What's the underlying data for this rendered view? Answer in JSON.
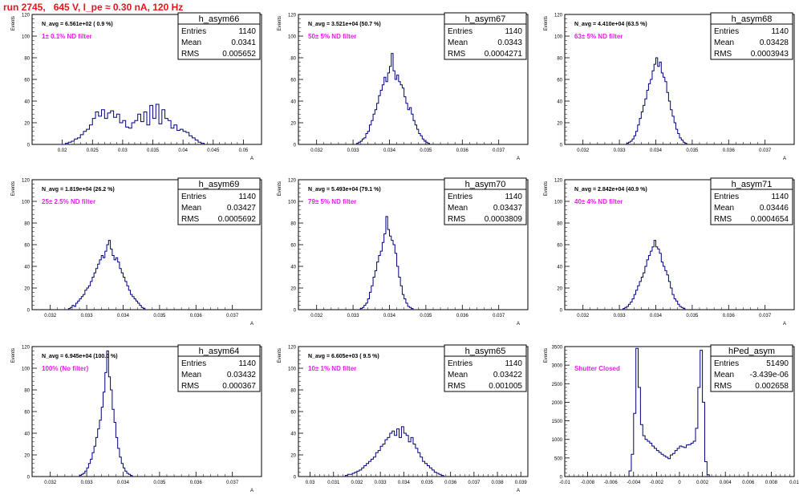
{
  "page_title": "run 2745,   645 V, I_pe ≈ 0.30 nA, 120 Hz",
  "chart_data": [
    {
      "type": "histogram",
      "hist_name": "h_asym66",
      "stats": {
        "entries": "1140",
        "mean": "0.0341",
        "rms": "0.005652"
      },
      "navg": "N_avg = 6.561e+02 ( 0.9 %)",
      "filter_label": "1± 0.1% ND filter",
      "ylabel": "Events",
      "xlabel": "A",
      "xlim": [
        0.015,
        0.053
      ],
      "ylim": [
        0,
        120
      ],
      "xticks": [
        0.02,
        0.025,
        0.03,
        0.035,
        0.04,
        0.045,
        0.05
      ],
      "xtick_labels": [
        "0.02",
        "0.025",
        "0.03",
        "0.035",
        "0.04",
        "0.045",
        "0.05"
      ],
      "yticks": [
        0,
        20,
        40,
        60,
        80,
        100,
        120
      ],
      "bin_start": 0.0195,
      "bin_width": 0.0005,
      "counts": [
        0,
        0,
        1,
        2,
        3,
        5,
        6,
        9,
        12,
        14,
        18,
        24,
        30,
        26,
        32,
        24,
        29,
        31,
        25,
        28,
        20,
        22,
        16,
        15,
        20,
        22,
        28,
        21,
        30,
        18,
        36,
        24,
        37,
        19,
        32,
        24,
        22,
        15,
        18,
        13,
        14,
        12,
        11,
        8,
        6,
        4,
        2,
        1
      ]
    },
    {
      "type": "histogram",
      "hist_name": "h_asym67",
      "stats": {
        "entries": "1140",
        "mean": "0.0343",
        "rms": "0.0004271"
      },
      "navg": "N_avg = 3.521e+04 (50.7 %)",
      "filter_label": "50± 5% ND filter",
      "ylabel": "Events",
      "xlabel": "A",
      "xlim": [
        0.0315,
        0.0378
      ],
      "ylim": [
        0,
        120
      ],
      "xticks": [
        0.032,
        0.033,
        0.034,
        0.035,
        0.036,
        0.037
      ],
      "xtick_labels": [
        "0.032",
        "0.033",
        "0.034",
        "0.035",
        "0.036",
        "0.037"
      ],
      "yticks": [
        0,
        20,
        40,
        60,
        80,
        100,
        120
      ],
      "bin_start": 0.0331,
      "bin_width": 5e-05,
      "counts": [
        1,
        2,
        3,
        5,
        6,
        10,
        12,
        18,
        22,
        28,
        32,
        38,
        45,
        50,
        55,
        62,
        58,
        66,
        72,
        84,
        68,
        60,
        64,
        58,
        55,
        52,
        44,
        38,
        32,
        34,
        28,
        22,
        18,
        14,
        10,
        8,
        5,
        3,
        2,
        1
      ]
    },
    {
      "type": "histogram",
      "hist_name": "h_asym68",
      "stats": {
        "entries": "1140",
        "mean": "0.03428",
        "rms": "0.0003943"
      },
      "navg": "N_avg = 4.410e+04 (63.5 %)",
      "filter_label": "63± 5% ND filter",
      "ylabel": "Events",
      "xlabel": "A",
      "xlim": [
        0.0315,
        0.0378
      ],
      "ylim": [
        0,
        120
      ],
      "xticks": [
        0.032,
        0.033,
        0.034,
        0.035,
        0.036,
        0.037
      ],
      "xtick_labels": [
        "0.032",
        "0.033",
        "0.034",
        "0.035",
        "0.036",
        "0.037"
      ],
      "yticks": [
        0,
        20,
        40,
        60,
        80,
        100,
        120
      ],
      "bin_start": 0.0332,
      "bin_width": 5e-05,
      "counts": [
        1,
        2,
        3,
        5,
        8,
        12,
        18,
        24,
        30,
        36,
        42,
        50,
        56,
        60,
        68,
        74,
        80,
        72,
        76,
        66,
        62,
        58,
        48,
        40,
        32,
        26,
        20,
        14,
        10,
        6,
        4,
        2,
        1
      ]
    },
    {
      "type": "histogram",
      "hist_name": "h_asym69",
      "stats": {
        "entries": "1140",
        "mean": "0.03427",
        "rms": "0.0005692"
      },
      "navg": "N_avg = 1.819e+04 (26.2 %)",
      "filter_label": "25± 2.5% ND filter",
      "ylabel": "Events",
      "xlabel": "A",
      "xlim": [
        0.0315,
        0.0378
      ],
      "ylim": [
        0,
        120
      ],
      "xticks": [
        0.032,
        0.033,
        0.034,
        0.035,
        0.036,
        0.037
      ],
      "xtick_labels": [
        "0.032",
        "0.033",
        "0.034",
        "0.035",
        "0.036",
        "0.037"
      ],
      "yticks": [
        0,
        20,
        40,
        60,
        80,
        100,
        120
      ],
      "bin_start": 0.0325,
      "bin_width": 5e-05,
      "counts": [
        1,
        2,
        4,
        3,
        6,
        8,
        10,
        12,
        14,
        18,
        20,
        22,
        26,
        30,
        34,
        38,
        42,
        46,
        50,
        48,
        54,
        60,
        64,
        56,
        50,
        46,
        48,
        44,
        38,
        34,
        30,
        26,
        22,
        18,
        14,
        12,
        10,
        8,
        6,
        4,
        2,
        1
      ]
    },
    {
      "type": "histogram",
      "hist_name": "h_asym70",
      "stats": {
        "entries": "1140",
        "mean": "0.03437",
        "rms": "0.0003809"
      },
      "navg": "N_avg = 5.493e+04 (79.1 %)",
      "filter_label": "79± 5% ND filter",
      "ylabel": "Events",
      "xlabel": "A",
      "xlim": [
        0.0315,
        0.0378
      ],
      "ylim": [
        0,
        120
      ],
      "xticks": [
        0.032,
        0.033,
        0.034,
        0.035,
        0.036,
        0.037
      ],
      "xtick_labels": [
        "0.032",
        "0.033",
        "0.034",
        "0.035",
        "0.036",
        "0.037"
      ],
      "yticks": [
        0,
        20,
        40,
        60,
        80,
        100,
        120
      ],
      "bin_start": 0.0332,
      "bin_width": 5e-05,
      "counts": [
        1,
        2,
        4,
        6,
        10,
        16,
        22,
        30,
        36,
        44,
        50,
        54,
        62,
        70,
        86,
        74,
        68,
        64,
        60,
        52,
        40,
        30,
        22,
        14,
        10,
        6,
        3,
        2,
        1
      ]
    },
    {
      "type": "histogram",
      "hist_name": "h_asym71",
      "stats": {
        "entries": "1140",
        "mean": "0.03446",
        "rms": "0.0004654"
      },
      "navg": "N_avg = 2.842e+04 (40.9 %)",
      "filter_label": "40± 4% ND filter",
      "ylabel": "Events",
      "xlabel": "A",
      "xlim": [
        0.0315,
        0.0378
      ],
      "ylim": [
        0,
        120
      ],
      "xticks": [
        0.032,
        0.033,
        0.034,
        0.035,
        0.036,
        0.037
      ],
      "xtick_labels": [
        "0.032",
        "0.033",
        "0.034",
        "0.035",
        "0.036",
        "0.037"
      ],
      "yticks": [
        0,
        20,
        40,
        60,
        80,
        100,
        120
      ],
      "bin_start": 0.0331,
      "bin_width": 5e-05,
      "counts": [
        1,
        2,
        3,
        5,
        7,
        10,
        14,
        18,
        22,
        26,
        30,
        34,
        40,
        46,
        50,
        54,
        58,
        64,
        58,
        56,
        52,
        44,
        40,
        36,
        32,
        26,
        20,
        14,
        10,
        8,
        5,
        3,
        2,
        1
      ]
    },
    {
      "type": "histogram",
      "hist_name": "h_asym64",
      "stats": {
        "entries": "1140",
        "mean": "0.03432",
        "rms": "0.000367"
      },
      "navg": "N_avg = 6.945e+04 (100.0 %)",
      "filter_label": "100% (No filter)",
      "ylabel": "Events",
      "xlabel": "A",
      "xlim": [
        0.0315,
        0.0378
      ],
      "ylim": [
        0,
        120
      ],
      "xticks": [
        0.032,
        0.033,
        0.034,
        0.035,
        0.036,
        0.037
      ],
      "xtick_labels": [
        "0.032",
        "0.033",
        "0.034",
        "0.035",
        "0.036",
        "0.037"
      ],
      "yticks": [
        0,
        20,
        40,
        60,
        80,
        100,
        120
      ],
      "bin_start": 0.0328,
      "bin_width": 5e-05,
      "counts": [
        1,
        2,
        3,
        5,
        8,
        12,
        16,
        22,
        28,
        36,
        44,
        52,
        64,
        78,
        96,
        116,
        92,
        80,
        62,
        50,
        36,
        26,
        18,
        12,
        8,
        5,
        3,
        2,
        1
      ]
    },
    {
      "type": "histogram",
      "hist_name": "h_asym65",
      "stats": {
        "entries": "1140",
        "mean": "0.03422",
        "rms": "0.001005"
      },
      "navg": "N_avg = 6.605e+03 ( 9.5 %)",
      "filter_label": "10± 1% ND filter",
      "ylabel": "Events",
      "xlabel": "A",
      "xlim": [
        0.0295,
        0.0393
      ],
      "ylim": [
        0,
        120
      ],
      "xticks": [
        0.03,
        0.031,
        0.032,
        0.033,
        0.034,
        0.035,
        0.036,
        0.037,
        0.038,
        0.039
      ],
      "xtick_labels": [
        "0.03",
        "0.031",
        "0.032",
        "0.033",
        "0.034",
        "0.035",
        "0.036",
        "0.037",
        "0.038",
        "0.039"
      ],
      "yticks": [
        0,
        20,
        40,
        60,
        80,
        100,
        120
      ],
      "bin_start": 0.0315,
      "bin_width": 0.0001,
      "counts": [
        1,
        2,
        2,
        3,
        4,
        5,
        6,
        8,
        10,
        12,
        14,
        16,
        18,
        22,
        24,
        28,
        30,
        34,
        36,
        40,
        42,
        38,
        44,
        36,
        46,
        40,
        38,
        32,
        36,
        30,
        26,
        22,
        18,
        14,
        12,
        10,
        8,
        6,
        4,
        3,
        2,
        1
      ]
    },
    {
      "type": "histogram",
      "hist_name": "hPed_asym",
      "stats": {
        "entries": "51490",
        "mean": "-3.439e-06",
        "rms": "0.002658"
      },
      "navg": "",
      "filter_label": "Shutter Closed",
      "ylabel": "Events",
      "xlabel": "",
      "xlim": [
        -0.01,
        0.01
      ],
      "ylim": [
        0,
        3500
      ],
      "xticks": [
        -0.01,
        -0.008,
        -0.006,
        -0.004,
        -0.002,
        0,
        0.002,
        0.004,
        0.006,
        0.008,
        0.01
      ],
      "xtick_labels": [
        "-0.01",
        "-0.008",
        "-0.006",
        "-0.004",
        "-0.002",
        "0",
        "0.002",
        "0.004",
        "0.006",
        "0.008",
        "0.01"
      ],
      "yticks": [
        0,
        500,
        1000,
        1500,
        2000,
        2500,
        3000,
        3500
      ],
      "bin_start": -0.0044,
      "bin_width": 0.0002,
      "counts": [
        150,
        600,
        1700,
        3450,
        2400,
        1400,
        1100,
        1000,
        950,
        900,
        820,
        760,
        700,
        650,
        600,
        560,
        520,
        480,
        580,
        620,
        700,
        760,
        820,
        800,
        780,
        850,
        860,
        900,
        950,
        1300,
        2400,
        3400,
        2000,
        400,
        50
      ]
    }
  ]
}
